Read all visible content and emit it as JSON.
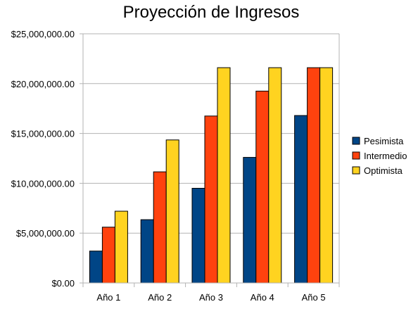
{
  "chart_data": {
    "type": "bar",
    "title": "Proyección de Ingresos",
    "categories": [
      "Año 1",
      "Año 2",
      "Año 3",
      "Año 4",
      "Año 5"
    ],
    "series": [
      {
        "name": "Pesimista",
        "color": "#004586",
        "values": [
          3200000,
          6350000,
          9500000,
          12600000,
          16800000
        ]
      },
      {
        "name": "Intermedio",
        "color": "#ff420e",
        "values": [
          5600000,
          11150000,
          16750000,
          19250000,
          21600000
        ]
      },
      {
        "name": "Optimista",
        "color": "#ffd320",
        "values": [
          7200000,
          14350000,
          21600000,
          21600000,
          21600000
        ]
      }
    ],
    "ylim": [
      0,
      25000000
    ],
    "yticks": [
      0,
      5000000,
      10000000,
      15000000,
      20000000,
      25000000
    ],
    "ytick_labels": [
      "$0.00",
      "$5,000,000.00",
      "$10,000,000.00",
      "$15,000,000.00",
      "$20,000,000.00",
      "$25,000,000.00"
    ],
    "grid": true,
    "legend_position": "right"
  }
}
